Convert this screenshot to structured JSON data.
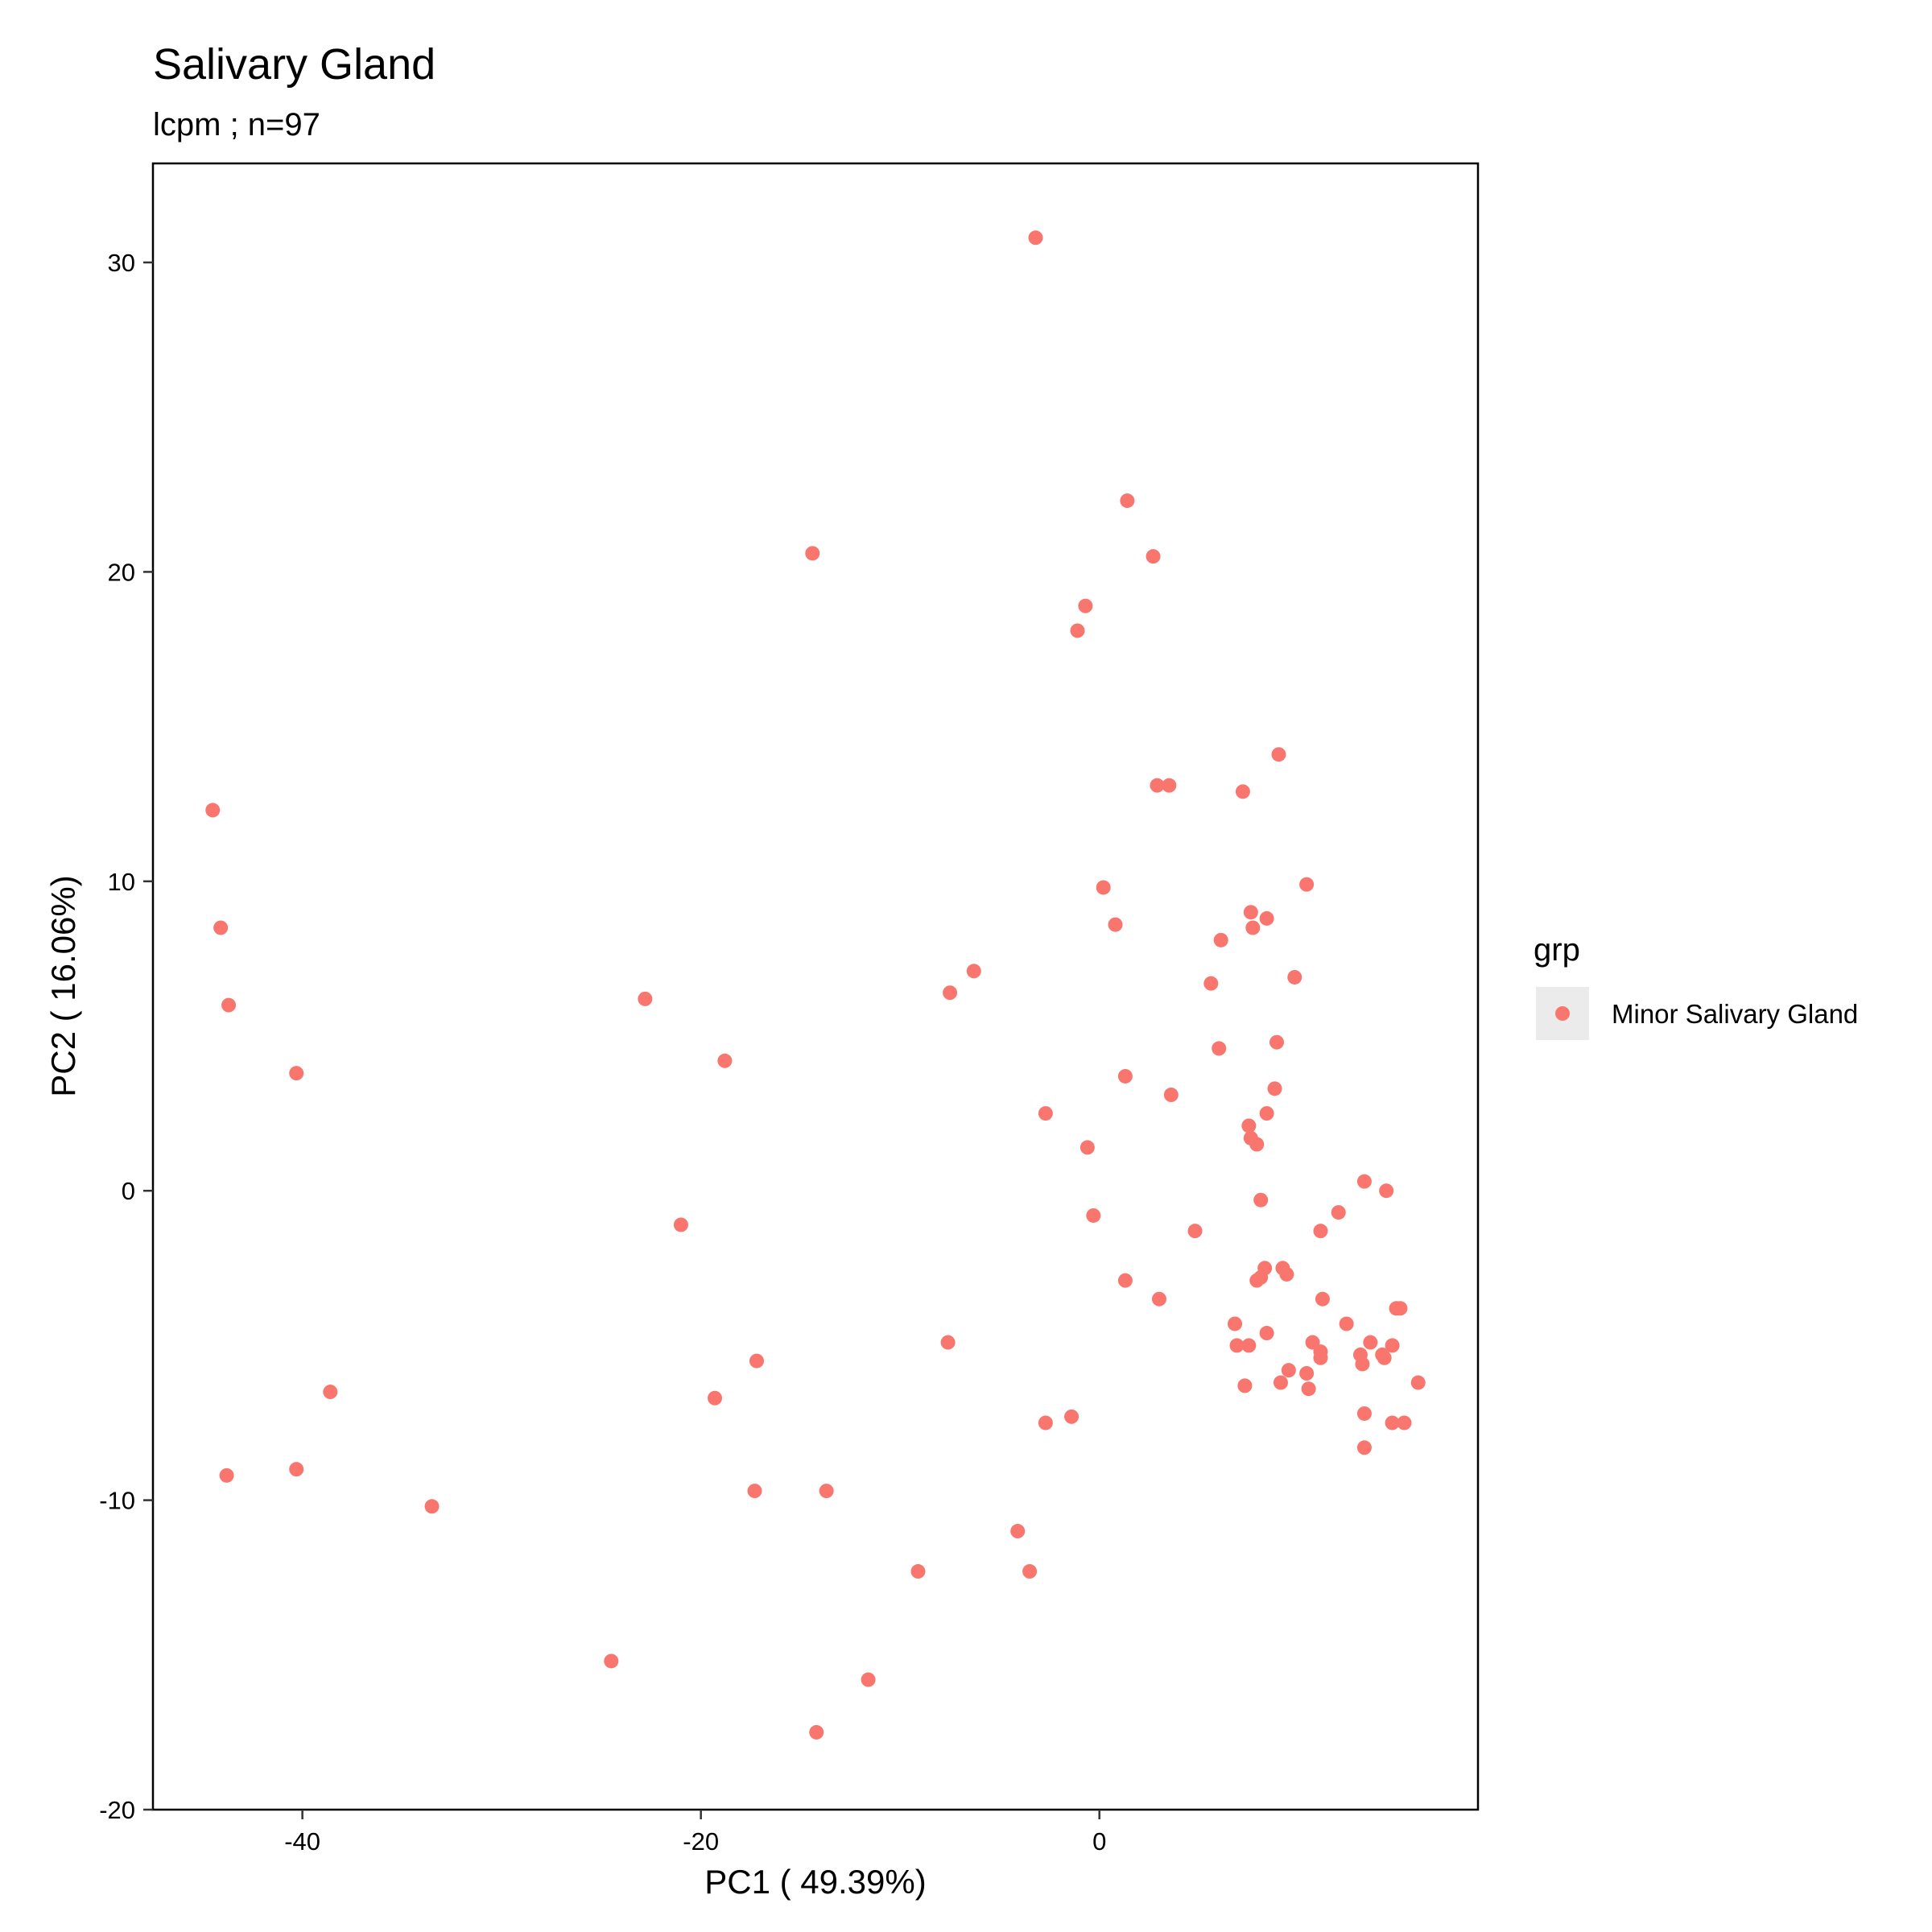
{
  "chart_data": {
    "type": "scatter",
    "title": "Salivary Gland",
    "subtitle": "lcpm ; n=97",
    "xlabel": "PC1 ( 49.39%)",
    "ylabel": "PC2 ( 16.06%)",
    "xlim": [
      -47.5,
      19
    ],
    "ylim": [
      -20,
      33.2
    ],
    "xticks": [
      -40,
      -20,
      0
    ],
    "yticks": [
      -20,
      -10,
      0,
      10,
      20,
      30
    ],
    "xtick_labels": [
      "-40",
      "-20",
      "0"
    ],
    "ytick_labels": [
      "-20",
      "-10",
      "0",
      "10",
      "20",
      "30"
    ],
    "grid": false,
    "legend_title": "grp",
    "legend_position": "right",
    "point_color": "#F8766D",
    "series": [
      {
        "name": "Minor Salivary Gland",
        "color": "#F8766D",
        "points": [
          [
            -3.2,
            30.8
          ],
          [
            1.4,
            22.3
          ],
          [
            2.7,
            20.5
          ],
          [
            -14.4,
            20.6
          ],
          [
            -0.7,
            18.9
          ],
          [
            -1.1,
            18.1
          ],
          [
            9.0,
            14.1
          ],
          [
            2.9,
            13.1
          ],
          [
            3.5,
            13.1
          ],
          [
            7.2,
            12.9
          ],
          [
            -44.5,
            12.3
          ],
          [
            10.4,
            9.9
          ],
          [
            0.2,
            9.8
          ],
          [
            7.6,
            9.0
          ],
          [
            8.4,
            8.8
          ],
          [
            0.8,
            8.6
          ],
          [
            -44.1,
            8.5
          ],
          [
            7.7,
            8.5
          ],
          [
            6.1,
            8.1
          ],
          [
            -6.3,
            7.1
          ],
          [
            9.8,
            6.9
          ],
          [
            -7.5,
            6.4
          ],
          [
            5.6,
            6.7
          ],
          [
            -22.8,
            6.2
          ],
          [
            -43.7,
            6.0
          ],
          [
            8.9,
            4.8
          ],
          [
            6.0,
            4.6
          ],
          [
            -18.8,
            4.2
          ],
          [
            -40.3,
            3.8
          ],
          [
            1.3,
            3.7
          ],
          [
            3.6,
            3.1
          ],
          [
            8.8,
            3.3
          ],
          [
            8.4,
            2.5
          ],
          [
            -2.7,
            2.5
          ],
          [
            7.5,
            2.1
          ],
          [
            7.6,
            1.7
          ],
          [
            7.9,
            1.5
          ],
          [
            -0.6,
            1.4
          ],
          [
            13.3,
            0.3
          ],
          [
            14.4,
            0.0
          ],
          [
            8.1,
            -0.3
          ],
          [
            -0.3,
            -0.8
          ],
          [
            12.0,
            -0.7
          ],
          [
            -21.0,
            -1.1
          ],
          [
            11.1,
            -1.3
          ],
          [
            4.8,
            -1.3
          ],
          [
            8.3,
            -2.5
          ],
          [
            9.2,
            -2.5
          ],
          [
            1.3,
            -2.9
          ],
          [
            9.4,
            -2.7
          ],
          [
            8.1,
            -2.8
          ],
          [
            7.9,
            -2.9
          ],
          [
            11.2,
            -3.5
          ],
          [
            3.0,
            -3.5
          ],
          [
            14.9,
            -3.8
          ],
          [
            15.1,
            -3.8
          ],
          [
            6.8,
            -4.3
          ],
          [
            12.4,
            -4.3
          ],
          [
            8.4,
            -4.6
          ],
          [
            -7.6,
            -4.9
          ],
          [
            6.9,
            -5.0
          ],
          [
            7.5,
            -5.0
          ],
          [
            10.7,
            -4.9
          ],
          [
            13.6,
            -4.9
          ],
          [
            14.7,
            -5.0
          ],
          [
            11.1,
            -5.2
          ],
          [
            13.1,
            -5.3
          ],
          [
            14.2,
            -5.3
          ],
          [
            14.3,
            -5.4
          ],
          [
            11.1,
            -5.4
          ],
          [
            -17.2,
            -5.5
          ],
          [
            13.2,
            -5.6
          ],
          [
            9.5,
            -5.8
          ],
          [
            10.4,
            -5.9
          ],
          [
            9.1,
            -6.2
          ],
          [
            16.0,
            -6.2
          ],
          [
            7.3,
            -6.3
          ],
          [
            10.5,
            -6.4
          ],
          [
            -38.6,
            -6.5
          ],
          [
            -19.3,
            -6.7
          ],
          [
            13.3,
            -7.2
          ],
          [
            -1.4,
            -7.3
          ],
          [
            -2.7,
            -7.5
          ],
          [
            14.7,
            -7.5
          ],
          [
            15.3,
            -7.5
          ],
          [
            13.3,
            -8.3
          ],
          [
            -43.8,
            -9.2
          ],
          [
            -40.3,
            -9.0
          ],
          [
            -17.3,
            -9.7
          ],
          [
            -13.7,
            -9.7
          ],
          [
            -33.5,
            -10.2
          ],
          [
            -4.1,
            -11.0
          ],
          [
            -9.1,
            -12.3
          ],
          [
            -3.5,
            -12.3
          ],
          [
            -24.5,
            -15.2
          ],
          [
            -11.6,
            -15.8
          ],
          [
            -14.2,
            -17.5
          ]
        ]
      }
    ]
  }
}
